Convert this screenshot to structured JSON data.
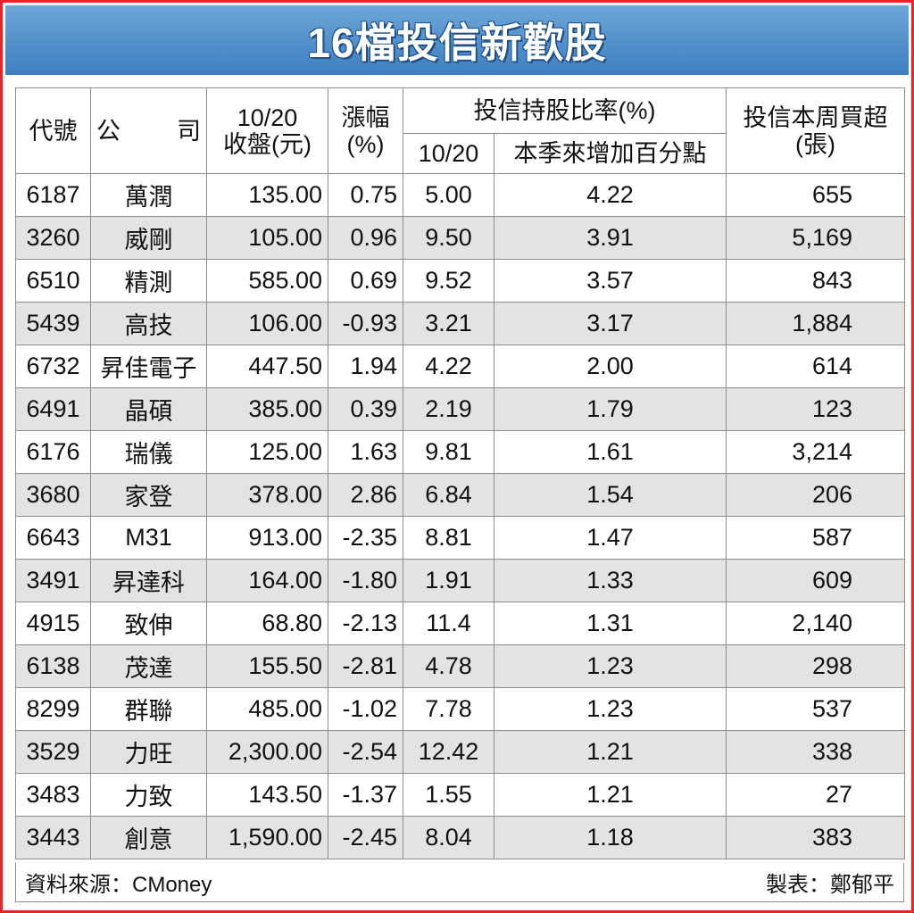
{
  "title": "16檔投信新歡股",
  "headers": {
    "code": "代號",
    "company_a": "公",
    "company_b": "司",
    "close_line1": "10/20",
    "close_line2": "收盤(元)",
    "change_line1": "漲幅",
    "change_line2": "(%)",
    "holding_group": "投信持股比率(%)",
    "holding_date": "10/20",
    "holding_increase": "本季來增加百分點",
    "buy_line1": "投信本周買超",
    "buy_line2": "(張)"
  },
  "rows": [
    {
      "code": "6187",
      "name": "萬潤",
      "close": "135.00",
      "change": "0.75",
      "holding": "5.00",
      "increase": "4.22",
      "buy": "655"
    },
    {
      "code": "3260",
      "name": "威剛",
      "close": "105.00",
      "change": "0.96",
      "holding": "9.50",
      "increase": "3.91",
      "buy": "5,169"
    },
    {
      "code": "6510",
      "name": "精測",
      "close": "585.00",
      "change": "0.69",
      "holding": "9.52",
      "increase": "3.57",
      "buy": "843"
    },
    {
      "code": "5439",
      "name": "高技",
      "close": "106.00",
      "change": "-0.93",
      "holding": "3.21",
      "increase": "3.17",
      "buy": "1,884"
    },
    {
      "code": "6732",
      "name": "昇佳電子",
      "close": "447.50",
      "change": "1.94",
      "holding": "4.22",
      "increase": "2.00",
      "buy": "614"
    },
    {
      "code": "6491",
      "name": "晶碩",
      "close": "385.00",
      "change": "0.39",
      "holding": "2.19",
      "increase": "1.79",
      "buy": "123"
    },
    {
      "code": "6176",
      "name": "瑞儀",
      "close": "125.00",
      "change": "1.63",
      "holding": "9.81",
      "increase": "1.61",
      "buy": "3,214"
    },
    {
      "code": "3680",
      "name": "家登",
      "close": "378.00",
      "change": "2.86",
      "holding": "6.84",
      "increase": "1.54",
      "buy": "206"
    },
    {
      "code": "6643",
      "name": "M31",
      "close": "913.00",
      "change": "-2.35",
      "holding": "8.81",
      "increase": "1.47",
      "buy": "587"
    },
    {
      "code": "3491",
      "name": "昇達科",
      "close": "164.00",
      "change": "-1.80",
      "holding": "1.91",
      "increase": "1.33",
      "buy": "609"
    },
    {
      "code": "4915",
      "name": "致伸",
      "close": "68.80",
      "change": "-2.13",
      "holding": "11.4",
      "increase": "1.31",
      "buy": "2,140"
    },
    {
      "code": "6138",
      "name": "茂達",
      "close": "155.50",
      "change": "-2.81",
      "holding": "4.78",
      "increase": "1.23",
      "buy": "298"
    },
    {
      "code": "8299",
      "name": "群聯",
      "close": "485.00",
      "change": "-1.02",
      "holding": "7.78",
      "increase": "1.23",
      "buy": "537"
    },
    {
      "code": "3529",
      "name": "力旺",
      "close": "2,300.00",
      "change": "-2.54",
      "holding": "12.42",
      "increase": "1.21",
      "buy": "338"
    },
    {
      "code": "3483",
      "name": "力致",
      "close": "143.50",
      "change": "-1.37",
      "holding": "1.55",
      "increase": "1.21",
      "buy": "27"
    },
    {
      "code": "3443",
      "name": "創意",
      "close": "1,590.00",
      "change": "-2.45",
      "holding": "8.04",
      "increase": "1.18",
      "buy": "383"
    }
  ],
  "footer": {
    "source": "資料來源：CMoney",
    "credit": "製表：鄭郁平"
  },
  "colors": {
    "border": "#e8242b",
    "title_bg": "#3d7fc1",
    "stripe": "#e3e3e3"
  }
}
